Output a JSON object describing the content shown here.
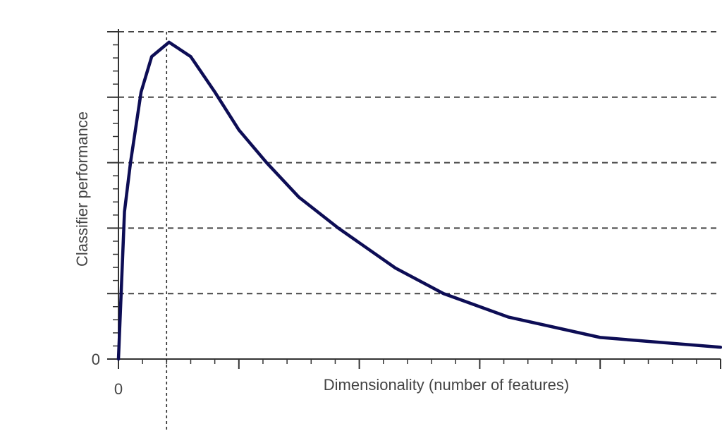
{
  "chart_data": {
    "type": "line",
    "x_label": "Dimensionality (number of features)",
    "y_label": "Classifier performance",
    "x": [
      0,
      0.25,
      0.5,
      0.94,
      1.38,
      2.1,
      3.0,
      4.0,
      5.0,
      6.15,
      7.5,
      9.13,
      11.5,
      13.5,
      16.2,
      20,
      25
    ],
    "series": [
      {
        "color": "#0d0d55",
        "values": [
          0,
          2.25,
          3.0,
          4.08,
          4.62,
          4.84,
          4.62,
          4.08,
          3.5,
          3.0,
          2.47,
          2.0,
          1.39,
          1.0,
          0.64,
          0.33,
          0.18
        ]
      }
    ],
    "xlim": [
      0,
      25
    ],
    "ylim": [
      0,
      5
    ],
    "xticks": [
      0,
      {
        "value": 5,
        "label": null
      },
      {
        "value": 10,
        "label": null
      },
      {
        "value": 15,
        "label": null
      },
      {
        "value": 20,
        "label": null
      },
      {
        "value": 25,
        "label": null
      }
    ],
    "yticks": [
      0,
      {
        "value": 1,
        "label": null
      },
      {
        "value": 2,
        "label": null
      },
      {
        "value": 3,
        "label": null
      },
      {
        "value": 4,
        "label": null
      },
      {
        "value": 5,
        "label": null
      }
    ],
    "vlines": [
      2
    ],
    "grid": true
  }
}
